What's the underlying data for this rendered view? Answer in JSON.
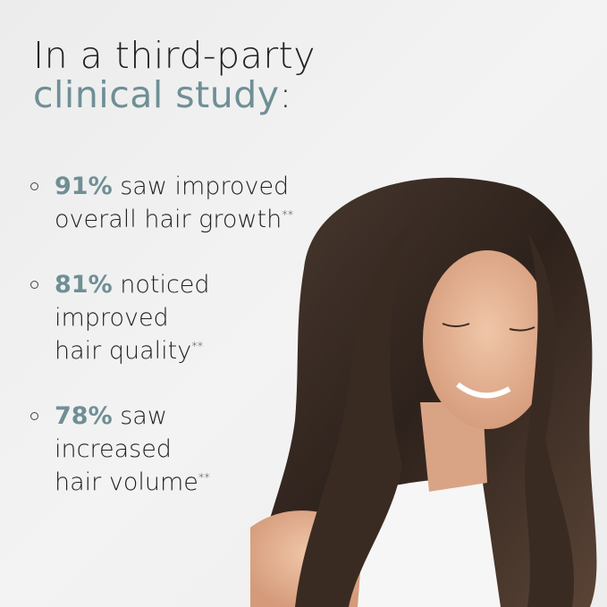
{
  "heading": {
    "line1": "In a third-party",
    "accent": "clinical study",
    "colon": ":"
  },
  "bullets": [
    {
      "percent": "91%",
      "text_a": " saw improved",
      "text_b": "overall hair growth",
      "mark": "**"
    },
    {
      "percent": "81%",
      "text_a": " noticed",
      "text_b": "improved",
      "text_c": "hair quality",
      "mark": "**"
    },
    {
      "percent": "78%",
      "text_a": " saw",
      "text_b": "increased",
      "text_c": "hair volume",
      "mark": "**"
    }
  ],
  "colors": {
    "accent": "#6f8f95",
    "background": "#efefef"
  }
}
